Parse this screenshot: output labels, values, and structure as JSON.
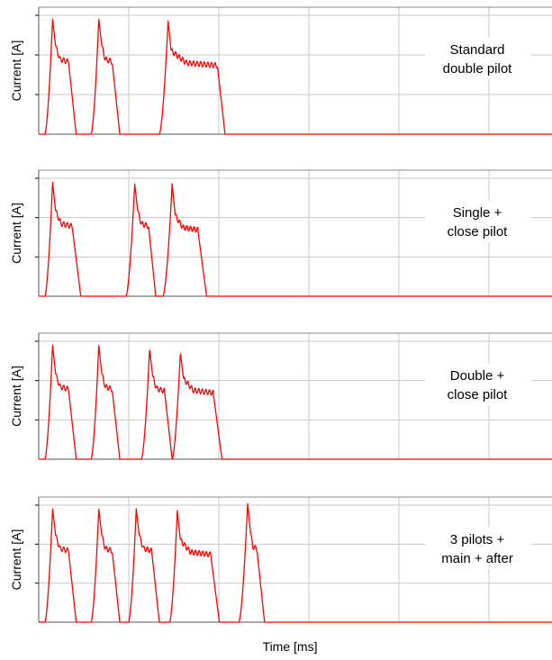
{
  "colors": {
    "trace": "#ff0000",
    "grid": "#c8c8c8",
    "axis": "#000000",
    "background": "#ffffff"
  },
  "chart_data": [
    {
      "type": "line",
      "ylabel": "Current [A]",
      "xlabel": "",
      "annotation": [
        "Standard",
        "double pilot"
      ],
      "grid": true,
      "xlim": [
        0,
        10
      ],
      "ylim": [
        0,
        3.2
      ],
      "pulses": [
        {
          "start": 0.12,
          "peak_t": 0.27,
          "peak": 3.1,
          "plateau": 2.05,
          "end": 0.58,
          "fall": 0.15
        },
        {
          "start": 1.02,
          "peak_t": 1.17,
          "peak": 3.1,
          "plateau": 2.05,
          "end": 1.43,
          "fall": 0.15
        },
        {
          "start": 2.35,
          "peak_t": 2.52,
          "peak": 3.05,
          "plateau": 1.95,
          "end": 3.48,
          "fall": 0.15
        }
      ]
    },
    {
      "type": "line",
      "ylabel": "Current [A]",
      "xlabel": "",
      "annotation": [
        "Single +",
        "close pilot"
      ],
      "grid": true,
      "xlim": [
        0,
        10
      ],
      "ylim": [
        0,
        3.2
      ],
      "pulses": [
        {
          "start": 0.12,
          "peak_t": 0.27,
          "peak": 3.1,
          "plateau": 2.0,
          "end": 0.65,
          "fall": 0.17
        },
        {
          "start": 1.7,
          "peak_t": 1.87,
          "peak": 3.05,
          "plateau": 2.0,
          "end": 2.14,
          "fall": 0.14
        },
        {
          "start": 2.42,
          "peak_t": 2.6,
          "peak": 3.05,
          "plateau": 1.9,
          "end": 3.1,
          "fall": 0.17
        }
      ]
    },
    {
      "type": "line",
      "ylabel": "Current [A]",
      "xlabel": "",
      "annotation": [
        "Double +",
        "close pilot"
      ],
      "grid": true,
      "xlim": [
        0,
        10
      ],
      "ylim": [
        0,
        3.2
      ],
      "pulses": [
        {
          "start": 0.12,
          "peak_t": 0.27,
          "peak": 3.1,
          "plateau": 2.0,
          "end": 0.58,
          "fall": 0.15
        },
        {
          "start": 1.02,
          "peak_t": 1.17,
          "peak": 3.1,
          "plateau": 2.0,
          "end": 1.43,
          "fall": 0.15
        },
        {
          "start": 2.0,
          "peak_t": 2.16,
          "peak": 3.0,
          "plateau": 1.95,
          "end": 2.45,
          "fall": 0.15
        },
        {
          "start": 2.6,
          "peak_t": 2.76,
          "peak": 2.9,
          "plateau": 1.9,
          "end": 3.4,
          "fall": 0.17
        }
      ]
    },
    {
      "type": "line",
      "ylabel": "Current [A]",
      "xlabel": "Time [ms]",
      "annotation": [
        "3 pilots +",
        "main + after"
      ],
      "grid": true,
      "xlim": [
        0,
        10
      ],
      "ylim": [
        0,
        3.2
      ],
      "pulses": [
        {
          "start": 0.12,
          "peak_t": 0.27,
          "peak": 3.1,
          "plateau": 2.05,
          "end": 0.58,
          "fall": 0.15
        },
        {
          "start": 1.02,
          "peak_t": 1.17,
          "peak": 3.1,
          "plateau": 2.05,
          "end": 1.43,
          "fall": 0.15
        },
        {
          "start": 1.75,
          "peak_t": 1.9,
          "peak": 3.1,
          "plateau": 2.05,
          "end": 2.2,
          "fall": 0.15
        },
        {
          "start": 2.55,
          "peak_t": 2.7,
          "peak": 3.05,
          "plateau": 1.95,
          "end": 3.35,
          "fall": 0.17
        },
        {
          "start": 3.9,
          "peak_t": 4.07,
          "peak": 3.25,
          "plateau": 2.1,
          "end": 4.25,
          "fall": 0.15
        }
      ]
    }
  ]
}
